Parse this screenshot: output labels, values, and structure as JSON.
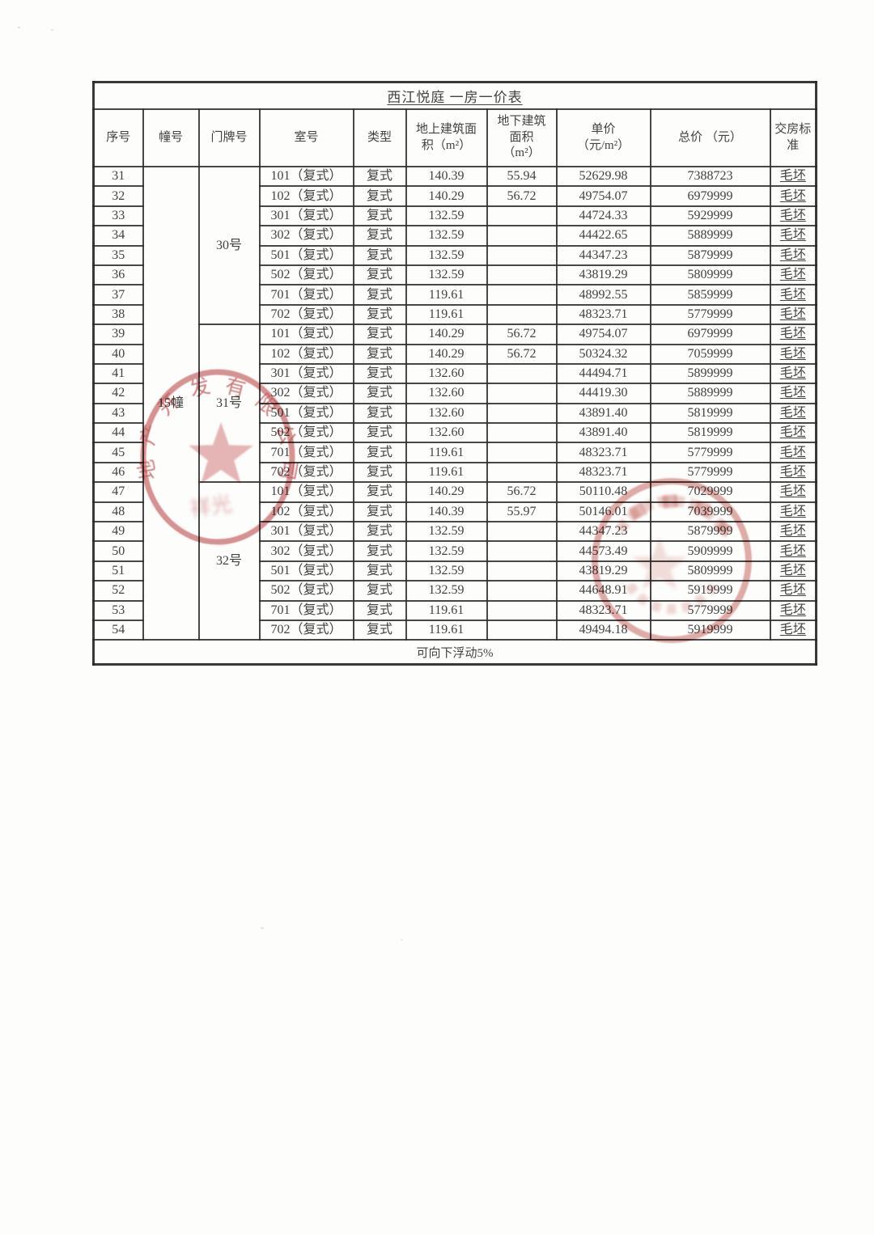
{
  "title": "西江悦庭 一房一价表",
  "footer_note": "可向下浮动5%",
  "columns": [
    "序号",
    "幢号",
    "门牌号",
    "室号",
    "类型",
    "地上建筑面\n积（m²）",
    "地下建筑\n面积\n（m²）",
    "单价\n（元/m²）",
    "总价 （元）",
    "交房标\n准"
  ],
  "building": {
    "label": "15幢"
  },
  "groups": [
    {
      "door": "30号",
      "start": 0,
      "count": 8
    },
    {
      "door": "31号",
      "start": 8,
      "count": 8
    },
    {
      "door": "32号",
      "start": 16,
      "count": 8
    }
  ],
  "rows": [
    {
      "no": "31",
      "room": "101（复式）",
      "type": "复式",
      "above": "140.39",
      "below": "55.94",
      "unit": "52629.98",
      "total": "7388723",
      "std": "毛坯"
    },
    {
      "no": "32",
      "room": "102（复式）",
      "type": "复式",
      "above": "140.29",
      "below": "56.72",
      "unit": "49754.07",
      "total": "6979999",
      "std": "毛坯"
    },
    {
      "no": "33",
      "room": "301（复式）",
      "type": "复式",
      "above": "132.59",
      "below": "",
      "unit": "44724.33",
      "total": "5929999",
      "std": "毛坯"
    },
    {
      "no": "34",
      "room": "302（复式）",
      "type": "复式",
      "above": "132.59",
      "below": "",
      "unit": "44422.65",
      "total": "5889999",
      "std": "毛坯"
    },
    {
      "no": "35",
      "room": "501（复式）",
      "type": "复式",
      "above": "132.59",
      "below": "",
      "unit": "44347.23",
      "total": "5879999",
      "std": "毛坯"
    },
    {
      "no": "36",
      "room": "502（复式）",
      "type": "复式",
      "above": "132.59",
      "below": "",
      "unit": "43819.29",
      "total": "5809999",
      "std": "毛坯"
    },
    {
      "no": "37",
      "room": "701（复式）",
      "type": "复式",
      "above": "119.61",
      "below": "",
      "unit": "48992.55",
      "total": "5859999",
      "std": "毛坯"
    },
    {
      "no": "38",
      "room": "702（复式）",
      "type": "复式",
      "above": "119.61",
      "below": "",
      "unit": "48323.71",
      "total": "5779999",
      "std": "毛坯"
    },
    {
      "no": "39",
      "room": "101（复式）",
      "type": "复式",
      "above": "140.29",
      "below": "56.72",
      "unit": "49754.07",
      "total": "6979999",
      "std": "毛坯"
    },
    {
      "no": "40",
      "room": "102（复式）",
      "type": "复式",
      "above": "140.29",
      "below": "56.72",
      "unit": "50324.32",
      "total": "7059999",
      "std": "毛坯"
    },
    {
      "no": "41",
      "room": "301（复式）",
      "type": "复式",
      "above": "132.60",
      "below": "",
      "unit": "44494.71",
      "total": "5899999",
      "std": "毛坯"
    },
    {
      "no": "42",
      "room": "302（复式）",
      "type": "复式",
      "above": "132.60",
      "below": "",
      "unit": "44419.30",
      "total": "5889999",
      "std": "毛坯"
    },
    {
      "no": "43",
      "room": "501（复式）",
      "type": "复式",
      "above": "132.60",
      "below": "",
      "unit": "43891.40",
      "total": "5819999",
      "std": "毛坯"
    },
    {
      "no": "44",
      "room": "502（复式）",
      "type": "复式",
      "above": "132.60",
      "below": "",
      "unit": "43891.40",
      "total": "5819999",
      "std": "毛坯"
    },
    {
      "no": "45",
      "room": "701（复式）",
      "type": "复式",
      "above": "119.61",
      "below": "",
      "unit": "48323.71",
      "total": "5779999",
      "std": "毛坯"
    },
    {
      "no": "46",
      "room": "702（复式）",
      "type": "复式",
      "above": "119.61",
      "below": "",
      "unit": "48323.71",
      "total": "5779999",
      "std": "毛坯"
    },
    {
      "no": "47",
      "room": "101（复式）",
      "type": "复式",
      "above": "140.29",
      "below": "56.72",
      "unit": "50110.48",
      "total": "7029999",
      "std": "毛坯"
    },
    {
      "no": "48",
      "room": "102（复式）",
      "type": "复式",
      "above": "140.39",
      "below": "55.97",
      "unit": "50146.01",
      "total": "7039999",
      "std": "毛坯"
    },
    {
      "no": "49",
      "room": "301（复式）",
      "type": "复式",
      "above": "132.59",
      "below": "",
      "unit": "44347.23",
      "total": "5879999",
      "std": "毛坯"
    },
    {
      "no": "50",
      "room": "302（复式）",
      "type": "复式",
      "above": "132.59",
      "below": "",
      "unit": "44573.49",
      "total": "5909999",
      "std": "毛坯"
    },
    {
      "no": "51",
      "room": "501（复式）",
      "type": "复式",
      "above": "132.59",
      "below": "",
      "unit": "43819.29",
      "total": "5809999",
      "std": "毛坯"
    },
    {
      "no": "52",
      "room": "502（复式）",
      "type": "复式",
      "above": "132.59",
      "below": "",
      "unit": "44648.91",
      "total": "5919999",
      "std": "毛坯"
    },
    {
      "no": "53",
      "room": "701（复式）",
      "type": "复式",
      "above": "119.61",
      "below": "",
      "unit": "48323.71",
      "total": "5779999",
      "std": "毛坯"
    },
    {
      "no": "54",
      "room": "702（复式）",
      "type": "复式",
      "above": "119.61",
      "below": "",
      "unit": "49494.18",
      "total": "5919999",
      "std": "毛坯"
    }
  ],
  "seals": {
    "left": {
      "arc_text": "地产开发有限公司",
      "bottom_text": "祥光",
      "color": "#c96a6a"
    },
    "right": {
      "color": "#cd7b72"
    }
  },
  "colors": {
    "border": "#2d2d2d",
    "text": "#424242",
    "stamp_red": "#c96a6a"
  }
}
